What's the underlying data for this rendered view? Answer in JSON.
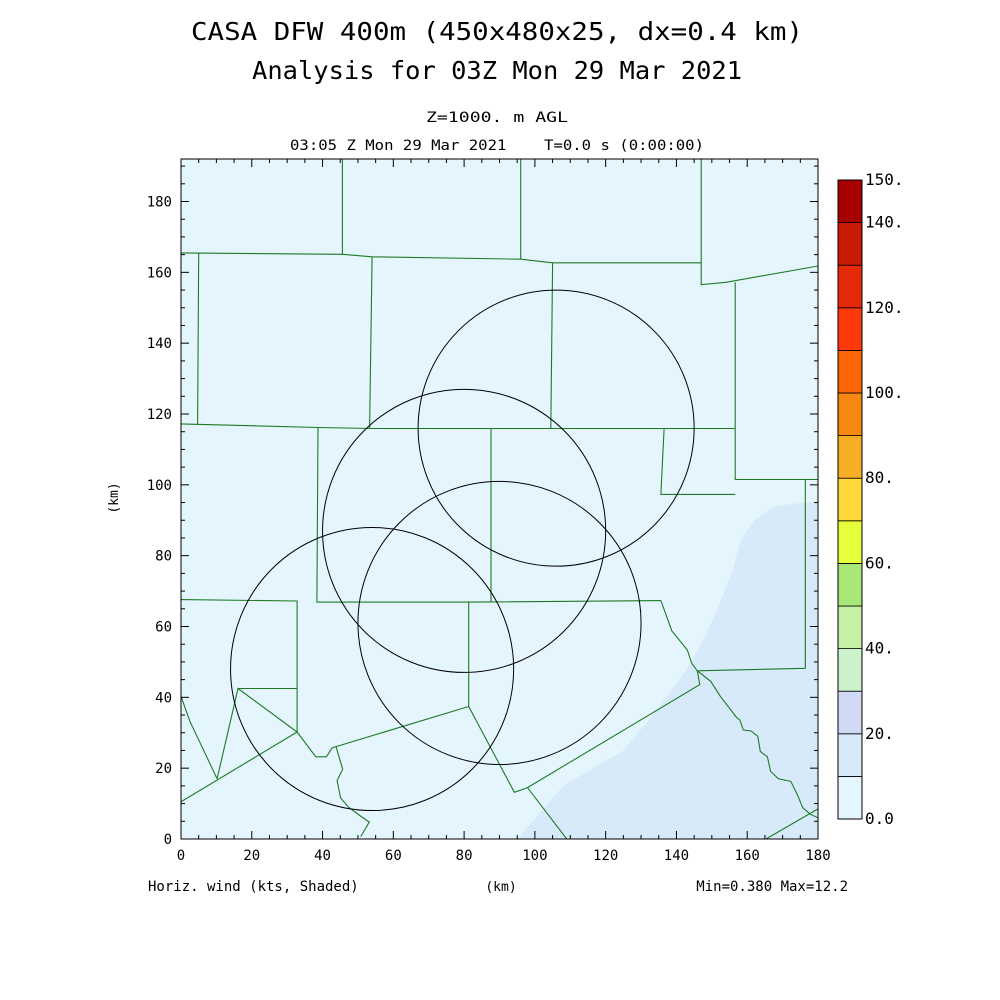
{
  "header": {
    "title_line1": "CASA DFW 400m (450x480x25, dx=0.4 km)",
    "title_line2": "Analysis for 03Z Mon 29 Mar 2021",
    "level": "Z=1000. m AGL",
    "time": "03:05 Z Mon 29 Mar 2021    T=0.0 s (0:00:00)"
  },
  "footer": {
    "field": "Horiz. wind (kts, Shaded)",
    "xunits": "(km)",
    "minmax": "Min=0.380 Max=12.2"
  },
  "chart_data": {
    "type": "heatmap",
    "xlabel": "(km)",
    "ylabel": "(km)",
    "xlim": [
      0,
      180
    ],
    "ylim": [
      0,
      192
    ],
    "x_ticks": [
      "0",
      "20",
      "40",
      "60",
      "80",
      "100",
      "120",
      "140",
      "160",
      "180"
    ],
    "y_ticks": [
      "0",
      "20",
      "40",
      "60",
      "80",
      "100",
      "120",
      "140",
      "160",
      "180"
    ],
    "x_tick_values": [
      0,
      20,
      40,
      60,
      80,
      100,
      120,
      140,
      160,
      180
    ],
    "y_tick_values": [
      0,
      20,
      40,
      60,
      80,
      100,
      120,
      140,
      160,
      180
    ],
    "colorbar": {
      "levels": [
        0,
        10,
        20,
        30,
        40,
        50,
        60,
        70,
        80,
        90,
        100,
        110,
        120,
        130,
        140,
        150
      ],
      "labels": [
        "0.0",
        "20.",
        "40.",
        "60.",
        "80.",
        "100.",
        "120.",
        "140.",
        "150."
      ],
      "label_values": [
        0,
        20,
        40,
        60,
        80,
        100,
        120,
        140,
        150
      ],
      "colors": [
        "#e4f5fd",
        "#d6eafa",
        "#d2d9f6",
        "#ccf2cc",
        "#c4f0a8",
        "#a8e878",
        "#e6ff3c",
        "#ffd83a",
        "#f8ae24",
        "#f68812",
        "#fa6608",
        "#fe3a0c",
        "#e42a08",
        "#c81a04",
        "#a80000"
      ]
    },
    "shaded_regions": [
      {
        "level_index": 1,
        "value_range": [
          10,
          20
        ],
        "polygon": [
          [
            95,
            0
          ],
          [
            108,
            15
          ],
          [
            125,
            25
          ],
          [
            135,
            37
          ],
          [
            143,
            48
          ],
          [
            148,
            57
          ],
          [
            152,
            66
          ],
          [
            156,
            76
          ],
          [
            158,
            84
          ],
          [
            162,
            90
          ],
          [
            168,
            94
          ],
          [
            176,
            95
          ],
          [
            180,
            95
          ],
          [
            180,
            0
          ]
        ]
      }
    ],
    "radar_range_rings": [
      {
        "center": [
          106,
          116
        ],
        "radius": 39
      },
      {
        "center": [
          80,
          87
        ],
        "radius": 40
      },
      {
        "center": [
          90,
          61
        ],
        "radius": 40
      },
      {
        "center": [
          54,
          48
        ],
        "radius": 40
      }
    ],
    "county_boundaries": [
      [
        [
          0,
          165.5
        ],
        [
          45.6,
          165.1
        ],
        [
          54,
          164.4
        ],
        [
          96,
          163.7
        ],
        [
          105,
          162.7
        ],
        [
          147,
          162.7
        ]
      ],
      [
        [
          5,
          165.5
        ],
        [
          4.7,
          117.2
        ]
      ],
      [
        [
          45.6,
          192
        ],
        [
          45.6,
          165.1
        ]
      ],
      [
        [
          0,
          117.2
        ],
        [
          38.7,
          116.2
        ],
        [
          54,
          115.9
        ],
        [
          87.6,
          115.9
        ],
        [
          104.5,
          115.9
        ],
        [
          136.5,
          115.9
        ],
        [
          156.6,
          115.9
        ]
      ],
      [
        [
          54,
          164.4
        ],
        [
          53.3,
          115.9
        ]
      ],
      [
        [
          96,
          192
        ],
        [
          96,
          163.7
        ]
      ],
      [
        [
          105,
          162.7
        ],
        [
          104.5,
          115.9
        ]
      ],
      [
        [
          147,
          192
        ],
        [
          147,
          156.5
        ],
        [
          154,
          157.2
        ],
        [
          180,
          161.8
        ]
      ],
      [
        [
          156.6,
          157.2
        ],
        [
          156.6,
          101.5
        ],
        [
          175.9,
          101.5
        ],
        [
          180,
          101.5
        ]
      ],
      [
        [
          38.7,
          116.2
        ],
        [
          38.4,
          66.9
        ],
        [
          81.3,
          66.9
        ],
        [
          135.6,
          67.3
        ]
      ],
      [
        [
          87.6,
          115.9
        ],
        [
          87.6,
          66.9
        ]
      ],
      [
        [
          136.5,
          115.9
        ],
        [
          135.6,
          97.3
        ],
        [
          156.6,
          97.3
        ]
      ],
      [
        [
          0,
          67.6
        ],
        [
          32.8,
          67.2
        ],
        [
          32.8,
          30.2
        ],
        [
          16.1,
          42.5
        ],
        [
          10.2,
          17
        ]
      ],
      [
        [
          32.8,
          42.5
        ],
        [
          16.1,
          42.5
        ]
      ],
      [
        [
          0,
          10.5
        ],
        [
          32.8,
          30.2
        ],
        [
          38.1,
          23.2
        ],
        [
          41.1,
          23.2
        ],
        [
          42.7,
          25.7
        ],
        [
          43.8,
          26.1
        ],
        [
          81.3,
          37.4
        ],
        [
          81.3,
          66.9
        ]
      ],
      [
        [
          0,
          40.3
        ],
        [
          2.5,
          33.3
        ],
        [
          10.2,
          17
        ]
      ],
      [
        [
          43.8,
          26.1
        ],
        [
          45.7,
          19.7
        ],
        [
          44.1,
          16.5
        ],
        [
          45.1,
          11.6
        ],
        [
          47.3,
          9
        ],
        [
          51.1,
          6.2
        ],
        [
          53.2,
          4.8
        ],
        [
          50.8,
          0.7
        ]
      ],
      [
        [
          81.3,
          37.4
        ],
        [
          94.2,
          13.2
        ],
        [
          97.9,
          14.5
        ],
        [
          109,
          0
        ]
      ],
      [
        [
          97.9,
          14.5
        ],
        [
          146.6,
          43.6
        ],
        [
          145.9,
          47.5
        ],
        [
          176.4,
          48.2
        ],
        [
          176.4,
          101.5
        ]
      ],
      [
        [
          135.6,
          67.3
        ],
        [
          138.7,
          58.8
        ],
        [
          143.1,
          53.3
        ],
        [
          144.3,
          49.6
        ],
        [
          145.9,
          47.5
        ],
        [
          149.7,
          44.5
        ],
        [
          152.4,
          40.3
        ],
        [
          157,
          34.3
        ],
        [
          157.9,
          33.6
        ],
        [
          158.9,
          30.8
        ],
        [
          161.1,
          30.5
        ],
        [
          163,
          29
        ],
        [
          163.7,
          24.7
        ],
        [
          165.7,
          23.2
        ],
        [
          166.6,
          19.1
        ],
        [
          168.8,
          17
        ],
        [
          172.3,
          16.3
        ],
        [
          174.2,
          12.4
        ],
        [
          175.7,
          8.8
        ],
        [
          177.8,
          7
        ],
        [
          180,
          6
        ]
      ],
      [
        [
          165.3,
          0
        ],
        [
          180,
          8.5
        ]
      ]
    ]
  }
}
